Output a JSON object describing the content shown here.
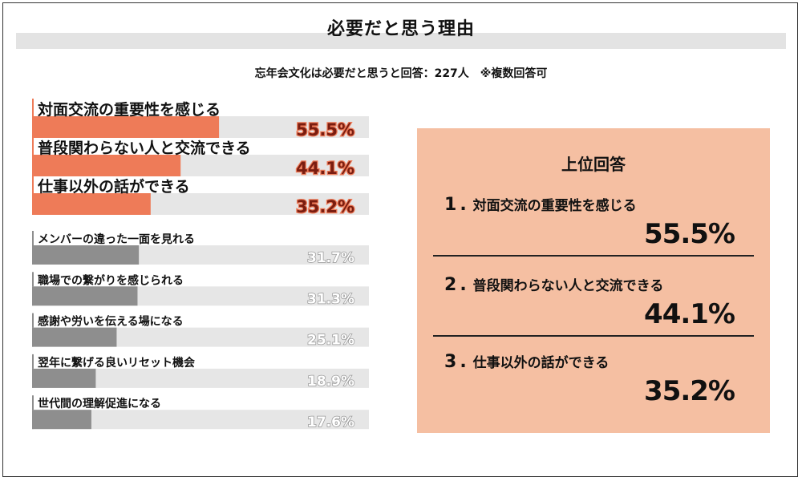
{
  "header": {
    "title": "必要だと思う理由",
    "subtitle": "忘年会文化は必要だと思うと回答：227人　※複数回答可"
  },
  "colors": {
    "highlight_bar": "#ee7b58",
    "normal_bar": "#8e8e8e",
    "track": "#e6e6e6",
    "panel_bg": "#f5bfa2"
  },
  "chart_data": {
    "type": "bar",
    "orientation": "horizontal",
    "categories": [
      "対面交流の重要性を感じる",
      "普段関わらない人と交流できる",
      "仕事以外の話ができる",
      "メンバーの違った一面を見れる",
      "職場での繋がりを感じられる",
      "感謝や労いを伝える場になる",
      "翌年に繋げる良いリセット機会",
      "世代間の理解促進になる"
    ],
    "values": [
      55.5,
      44.1,
      35.2,
      31.7,
      31.3,
      25.1,
      18.9,
      17.6
    ],
    "value_labels": [
      "55.5%",
      "44.1%",
      "35.2%",
      "31.7%",
      "31.3%",
      "25.1%",
      "18.9%",
      "17.6%"
    ],
    "highlighted_count": 3,
    "xlim": [
      0,
      100
    ],
    "grid": false,
    "legend": "none"
  },
  "top_answers": {
    "heading": "上位回答",
    "items": [
      {
        "rank": "1",
        "label": "対面交流の重要性を感じる",
        "value": "55.5%"
      },
      {
        "rank": "2",
        "label": "普段関わらない人と交流できる",
        "value": "44.1%"
      },
      {
        "rank": "3",
        "label": "仕事以外の話ができる",
        "value": "35.2%"
      }
    ]
  }
}
